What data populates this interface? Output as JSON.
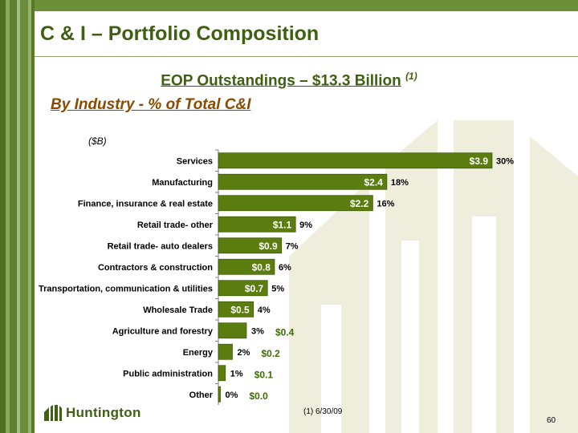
{
  "slide": {
    "title": "C & I – Portfolio Composition",
    "headline": "EOP Outstandings – $13.3 Billion",
    "headline_note": "(1)",
    "subtitle": "By Industry - % of Total C&I",
    "unit": "($B)",
    "footnote": "(1)   6/30/09",
    "page_number": "60",
    "logo_text": "Huntington",
    "logo_icon": "huntington-logo-icon"
  },
  "colors": {
    "bar": "#5b7d0f",
    "bar_border": "#3f5a08",
    "title": "#3f5f13",
    "subtitle": "#8a4a00",
    "outside_value": "#3f6a0a"
  },
  "chart_data": {
    "type": "bar",
    "orientation": "horizontal",
    "xlim": [
      0,
      3.9
    ],
    "grid": false,
    "categories": [
      "Services",
      "Manufacturing",
      "Finance, insurance & real estate",
      "Retail trade- other",
      "Retail trade- auto dealers",
      "Contractors & construction",
      "Transportation, communication & utilities",
      "Wholesale Trade",
      "Agriculture and forestry",
      "Energy",
      "Public administration",
      "Other"
    ],
    "values": [
      3.9,
      2.4,
      2.2,
      1.1,
      0.9,
      0.8,
      0.7,
      0.5,
      0.4,
      0.2,
      0.1,
      0.0
    ],
    "value_labels": [
      "$3.9",
      "$2.4",
      "$2.2",
      "$1.1",
      "$0.9",
      "$0.8",
      "$0.7",
      "$0.5",
      "$0.4",
      "$0.2",
      "$0.1",
      "$0.0"
    ],
    "percent_labels": [
      "30%",
      "18%",
      "16%",
      "9%",
      "7%",
      "6%",
      "5%",
      "4%",
      "3%",
      "2%",
      "1%",
      "0%"
    ]
  }
}
